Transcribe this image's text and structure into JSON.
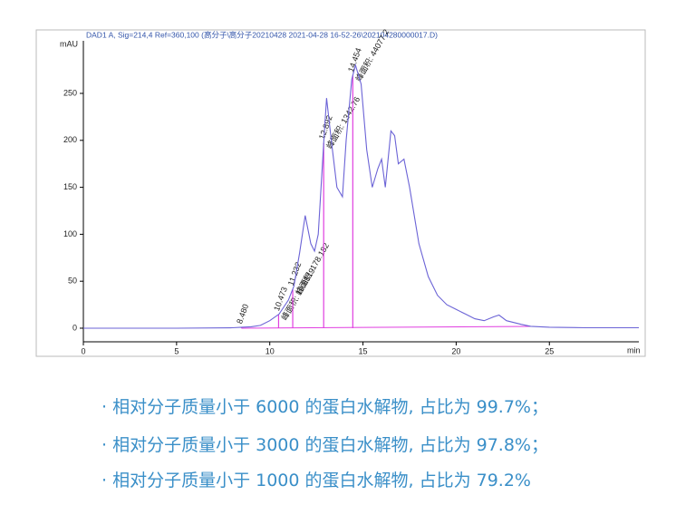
{
  "chart_data": {
    "type": "line",
    "title": "DAD1 A, Sig=214,4 Ref=360,100 (高分子\\高分子20210428 2021-04-28 16-52-26\\202104280000017.D)",
    "y_label": "mAU",
    "x_label": "min",
    "color": "#6b63d6",
    "x": [
      0,
      5,
      8,
      8.5,
      9,
      9.5,
      10,
      10.5,
      11,
      11.3,
      11.6,
      11.9,
      12.2,
      12.4,
      12.6,
      12.9,
      13.05,
      13.3,
      13.6,
      13.9,
      14.1,
      14.4,
      14.6,
      14.9,
      15.2,
      15.5,
      15.8,
      16.0,
      16.2,
      16.5,
      16.7,
      16.9,
      17.2,
      17.5,
      18,
      18.5,
      19,
      19.5,
      20,
      20.5,
      21,
      21.5,
      22,
      22.3,
      22.7,
      23.5,
      24,
      25,
      27,
      29.8
    ],
    "values": [
      0,
      0,
      0.5,
      1,
      1.5,
      3,
      8,
      15,
      30,
      45,
      80,
      120,
      90,
      82,
      100,
      200,
      245,
      200,
      150,
      140,
      200,
      265,
      280,
      260,
      190,
      150,
      170,
      180,
      150,
      210,
      205,
      175,
      180,
      150,
      90,
      55,
      35,
      25,
      20,
      15,
      10,
      8,
      12,
      14,
      8,
      4,
      2,
      1,
      0.5,
      0.5
    ],
    "xlim": [
      0,
      29.8
    ],
    "ylim": [
      -14.5,
      306
    ],
    "xticks": [
      0,
      5,
      10,
      15,
      20,
      25
    ],
    "yticks": [
      0,
      50,
      100,
      150,
      200,
      250
    ],
    "peak_color": "#e03ee0",
    "peaks": [
      {
        "time": 8.48,
        "time_label": "8.480"
      },
      {
        "time": 10.473,
        "time_label": "10.473",
        "area_label": "峰面积: 19.8519"
      },
      {
        "time": 11.232,
        "time_label": "11.232",
        "area_label": "峰面积: 178.182"
      },
      {
        "time": 12.892,
        "time_label": "12.892",
        "area_label": "峰面积: 1342.76"
      },
      {
        "time": 14.454,
        "time_label": "14.454",
        "area_label": "峰面积: 44077.2"
      }
    ]
  },
  "notes": [
    "· 相对分子质量小于 6000 的蛋白水解物, 占比为 99.7%；",
    "· 相对分子质量小于 3000 的蛋白水解物, 占比为 97.8%；",
    "· 相对分子质量小于 1000 的蛋白水解物, 占比为 79.2%"
  ]
}
